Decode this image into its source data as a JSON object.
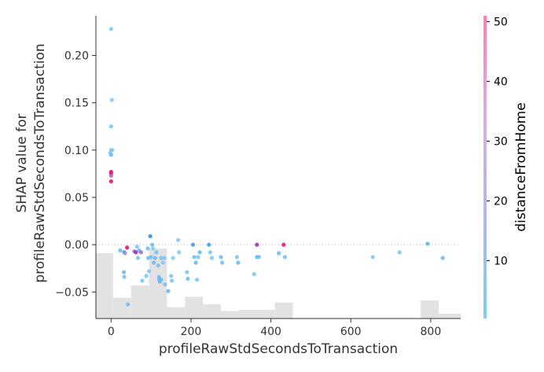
{
  "chart_data": {
    "type": "scatter",
    "title": "",
    "xlabel": "profileRawStdSecondsToTransaction",
    "ylabel_lines": [
      "SHAP value for",
      "profileRawStdSecondsToTransaction"
    ],
    "xlim": [
      -38,
      875
    ],
    "ylim": [
      -0.078,
      0.242
    ],
    "x_ticks": [
      0,
      200,
      400,
      600,
      800
    ],
    "y_ticks": [
      -0.05,
      0.0,
      0.05,
      0.1,
      0.15,
      0.2
    ],
    "x_tick_labels": [
      "0",
      "200",
      "400",
      "600",
      "800"
    ],
    "y_tick_labels": [
      "−0.05",
      "0.00",
      "0.05",
      "0.10",
      "0.15",
      "0.20"
    ],
    "zero_line": true,
    "grid": false,
    "colorbar": {
      "label": "distanceFromHome",
      "range": [
        0.3,
        51
      ],
      "ticks": [
        10,
        20,
        30,
        40,
        50
      ],
      "tick_labels": [
        "10",
        "20",
        "30",
        "40",
        "50"
      ],
      "colors": [
        "#7fcdf5",
        "#b2b7ea",
        "#eeaad4",
        "#ff0052"
      ]
    },
    "histogram": {
      "color": "#e2e2e2",
      "bins": [
        {
          "x0": -38,
          "x1": 5,
          "h": 0.069
        },
        {
          "x0": 5,
          "x1": 50,
          "h": 0.022
        },
        {
          "x0": 50,
          "x1": 95,
          "h": 0.035
        },
        {
          "x0": 95,
          "x1": 140,
          "h": 0.074
        },
        {
          "x0": 140,
          "x1": 185,
          "h": 0.012
        },
        {
          "x0": 185,
          "x1": 230,
          "h": 0.023
        },
        {
          "x0": 230,
          "x1": 275,
          "h": 0.015
        },
        {
          "x0": 275,
          "x1": 320,
          "h": 0.008
        },
        {
          "x0": 320,
          "x1": 410,
          "h": 0.009
        },
        {
          "x0": 410,
          "x1": 455,
          "h": 0.017
        },
        {
          "x0": 775,
          "x1": 820,
          "h": 0.019
        },
        {
          "x0": 820,
          "x1": 875,
          "h": 0.005
        }
      ]
    },
    "points": [
      {
        "x": 0,
        "y": 0.228,
        "c": 2
      },
      {
        "x": 2,
        "y": 0.153,
        "c": 2
      },
      {
        "x": 0,
        "y": 0.125,
        "c": 4
      },
      {
        "x": 0,
        "y": 0.1,
        "c": 3
      },
      {
        "x": 3,
        "y": 0.1,
        "c": 2
      },
      {
        "x": -2,
        "y": 0.097,
        "c": 3
      },
      {
        "x": 0,
        "y": 0.095,
        "c": 6
      },
      {
        "x": 0,
        "y": 0.077,
        "c": 47
      },
      {
        "x": 0,
        "y": 0.075,
        "c": 49
      },
      {
        "x": 0,
        "y": 0.073,
        "c": 30
      },
      {
        "x": 0,
        "y": 0.067,
        "c": 48
      },
      {
        "x": 23,
        "y": -0.006,
        "c": 7
      },
      {
        "x": 33,
        "y": -0.008,
        "c": 18
      },
      {
        "x": 35,
        "y": -0.009,
        "c": 24
      },
      {
        "x": 40,
        "y": -0.003,
        "c": 46
      },
      {
        "x": 32,
        "y": -0.029,
        "c": 7
      },
      {
        "x": 33,
        "y": -0.034,
        "c": 5
      },
      {
        "x": 42,
        "y": -0.063,
        "c": 6
      },
      {
        "x": 58,
        "y": -0.007,
        "c": 28
      },
      {
        "x": 62,
        "y": -0.008,
        "c": 38
      },
      {
        "x": 65,
        "y": -0.002,
        "c": 3
      },
      {
        "x": 67,
        "y": -0.014,
        "c": 4
      },
      {
        "x": 70,
        "y": -0.006,
        "c": 6
      },
      {
        "x": 75,
        "y": -0.008,
        "c": 30
      },
      {
        "x": 78,
        "y": -0.038,
        "c": 3
      },
      {
        "x": 88,
        "y": -0.033,
        "c": 3
      },
      {
        "x": 92,
        "y": -0.004,
        "c": 5
      },
      {
        "x": 93,
        "y": -0.014,
        "c": 6
      },
      {
        "x": 95,
        "y": -0.028,
        "c": 3
      },
      {
        "x": 98,
        "y": 0.009,
        "c": 18
      },
      {
        "x": 100,
        "y": -0.013,
        "c": 5
      },
      {
        "x": 103,
        "y": 0.0,
        "c": 6
      },
      {
        "x": 105,
        "y": -0.004,
        "c": 2
      },
      {
        "x": 107,
        "y": -0.019,
        "c": 6
      },
      {
        "x": 110,
        "y": -0.014,
        "c": 6
      },
      {
        "x": 113,
        "y": -0.008,
        "c": 5
      },
      {
        "x": 118,
        "y": -0.022,
        "c": 4
      },
      {
        "x": 120,
        "y": -0.034,
        "c": 6
      },
      {
        "x": 121,
        "y": -0.037,
        "c": 8
      },
      {
        "x": 122,
        "y": -0.039,
        "c": 7
      },
      {
        "x": 125,
        "y": -0.037,
        "c": 7
      },
      {
        "x": 125,
        "y": -0.014,
        "c": 4
      },
      {
        "x": 130,
        "y": -0.019,
        "c": 3
      },
      {
        "x": 133,
        "y": -0.014,
        "c": 3
      },
      {
        "x": 135,
        "y": -0.042,
        "c": 5
      },
      {
        "x": 143,
        "y": -0.049,
        "c": 7
      },
      {
        "x": 150,
        "y": -0.033,
        "c": 3
      },
      {
        "x": 152,
        "y": -0.038,
        "c": 3
      },
      {
        "x": 155,
        "y": -0.014,
        "c": 2
      },
      {
        "x": 168,
        "y": 0.005,
        "c": 2
      },
      {
        "x": 170,
        "y": -0.008,
        "c": 2
      },
      {
        "x": 190,
        "y": -0.029,
        "c": 4
      },
      {
        "x": 192,
        "y": -0.036,
        "c": 6
      },
      {
        "x": 205,
        "y": 0.0,
        "c": 14
      },
      {
        "x": 208,
        "y": -0.013,
        "c": 5
      },
      {
        "x": 212,
        "y": -0.019,
        "c": 6
      },
      {
        "x": 215,
        "y": -0.037,
        "c": 3
      },
      {
        "x": 218,
        "y": -0.013,
        "c": 3
      },
      {
        "x": 222,
        "y": -0.008,
        "c": 6
      },
      {
        "x": 245,
        "y": 0.0,
        "c": 14
      },
      {
        "x": 248,
        "y": -0.008,
        "c": 3
      },
      {
        "x": 252,
        "y": -0.014,
        "c": 3
      },
      {
        "x": 275,
        "y": -0.013,
        "c": 6
      },
      {
        "x": 278,
        "y": -0.019,
        "c": 5
      },
      {
        "x": 315,
        "y": -0.013,
        "c": 4
      },
      {
        "x": 318,
        "y": -0.019,
        "c": 6
      },
      {
        "x": 358,
        "y": -0.031,
        "c": 3
      },
      {
        "x": 365,
        "y": 0.0,
        "c": 38
      },
      {
        "x": 365,
        "y": -0.013,
        "c": 7
      },
      {
        "x": 370,
        "y": -0.013,
        "c": 6
      },
      {
        "x": 420,
        "y": -0.009,
        "c": 6
      },
      {
        "x": 432,
        "y": 0.0,
        "c": 45
      },
      {
        "x": 435,
        "y": -0.013,
        "c": 5
      },
      {
        "x": 655,
        "y": -0.013,
        "c": 3
      },
      {
        "x": 722,
        "y": -0.008,
        "c": 3
      },
      {
        "x": 792,
        "y": 0.001,
        "c": 9
      },
      {
        "x": 830,
        "y": -0.014,
        "c": 6
      }
    ]
  }
}
